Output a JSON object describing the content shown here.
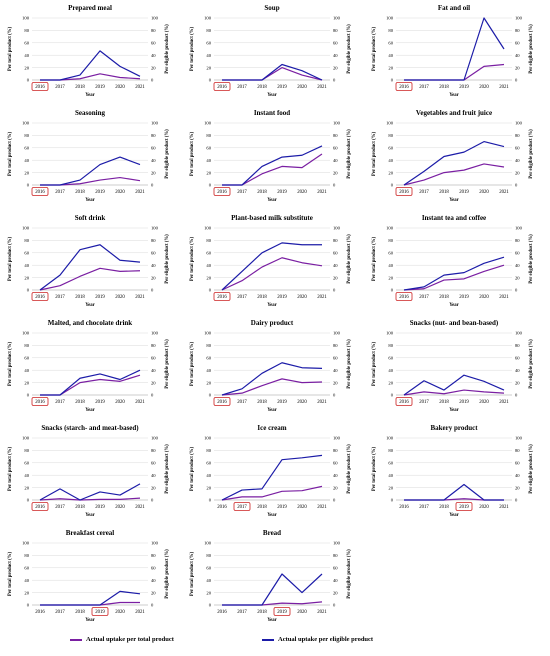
{
  "colors": {
    "total": "#7a1fa2",
    "eligible": "#1c1ca8",
    "highlight": "#cc2222",
    "grid": "#d9d9d9"
  },
  "legend": {
    "total_label": "Actual uptake per total product",
    "eligible_label": "Actual uptake per eligible product"
  },
  "chart_data": [
    {
      "type": "line",
      "title": "Prepared meal",
      "x": [
        "2016",
        "2017",
        "2018",
        "2019",
        "2020",
        "2021"
      ],
      "xlabel": "Year",
      "ylabel": "Per total product (%)",
      "y2label": "Per eligible product (%)",
      "ylim": [
        0,
        100
      ],
      "yticks": [
        0,
        20,
        40,
        60,
        80,
        100
      ],
      "highlight_year": "2016",
      "series": [
        {
          "name": "Actual uptake per total product",
          "values": [
            0,
            0,
            2,
            10,
            4,
            2
          ]
        },
        {
          "name": "Actual uptake per eligible product",
          "values": [
            0,
            0,
            8,
            47,
            22,
            6
          ]
        }
      ]
    },
    {
      "type": "line",
      "title": "Soup",
      "x": [
        "2016",
        "2017",
        "2018",
        "2019",
        "2020",
        "2021"
      ],
      "xlabel": "Year",
      "ylabel": "Per total product (%)",
      "y2label": "Per eligible product (%)",
      "ylim": [
        0,
        100
      ],
      "yticks": [
        0,
        20,
        40,
        60,
        80,
        100
      ],
      "highlight_year": "2016",
      "series": [
        {
          "name": "Actual uptake per total product",
          "values": [
            0,
            0,
            0,
            20,
            8,
            0
          ]
        },
        {
          "name": "Actual uptake per eligible product",
          "values": [
            0,
            0,
            0,
            25,
            15,
            0
          ]
        }
      ]
    },
    {
      "type": "line",
      "title": "Fat and oil",
      "x": [
        "2016",
        "2017",
        "2018",
        "2019",
        "2020",
        "2021"
      ],
      "xlabel": "Year",
      "ylabel": "Per total product (%)",
      "y2label": "Per eligible product (%)",
      "ylim": [
        0,
        100
      ],
      "yticks": [
        0,
        20,
        40,
        60,
        80,
        100
      ],
      "highlight_year": "2016",
      "series": [
        {
          "name": "Actual uptake per total product",
          "values": [
            0,
            0,
            0,
            0,
            22,
            25
          ]
        },
        {
          "name": "Actual uptake per eligible product",
          "values": [
            0,
            0,
            0,
            0,
            100,
            50
          ]
        }
      ]
    },
    {
      "type": "line",
      "title": "Seasoning",
      "x": [
        "2016",
        "2017",
        "2018",
        "2019",
        "2020",
        "2021"
      ],
      "xlabel": "Year",
      "ylabel": "Per total product (%)",
      "y2label": "Per eligible product (%)",
      "ylim": [
        0,
        100
      ],
      "yticks": [
        0,
        20,
        40,
        60,
        80,
        100
      ],
      "highlight_year": "2016",
      "series": [
        {
          "name": "Actual uptake per total product",
          "values": [
            0,
            0,
            2,
            8,
            12,
            7
          ]
        },
        {
          "name": "Actual uptake per eligible product",
          "values": [
            0,
            0,
            8,
            33,
            45,
            33
          ]
        }
      ]
    },
    {
      "type": "line",
      "title": "Instant food",
      "x": [
        "2016",
        "2017",
        "2018",
        "2019",
        "2020",
        "2021"
      ],
      "xlabel": "Year",
      "ylabel": "Per total product (%)",
      "y2label": "Per eligible product (%)",
      "ylim": [
        0,
        100
      ],
      "yticks": [
        0,
        20,
        40,
        60,
        80,
        100
      ],
      "highlight_year": "2016",
      "series": [
        {
          "name": "Actual uptake per total product",
          "values": [
            0,
            0,
            18,
            30,
            28,
            50
          ]
        },
        {
          "name": "Actual uptake per eligible product",
          "values": [
            0,
            0,
            30,
            45,
            48,
            63
          ]
        }
      ]
    },
    {
      "type": "line",
      "title": "Vegetables and fruit juice",
      "x": [
        "2016",
        "2017",
        "2018",
        "2019",
        "2020",
        "2021"
      ],
      "xlabel": "Year",
      "ylabel": "Per total product (%)",
      "y2label": "Per eligible product (%)",
      "ylim": [
        0,
        100
      ],
      "yticks": [
        0,
        20,
        40,
        60,
        80,
        100
      ],
      "highlight_year": "2016",
      "series": [
        {
          "name": "Actual uptake per total product",
          "values": [
            0,
            8,
            20,
            24,
            34,
            29
          ]
        },
        {
          "name": "Actual uptake per eligible product",
          "values": [
            0,
            22,
            46,
            53,
            70,
            62
          ]
        }
      ]
    },
    {
      "type": "line",
      "title": "Soft drink",
      "x": [
        "2016",
        "2017",
        "2018",
        "2019",
        "2020",
        "2021"
      ],
      "xlabel": "Year",
      "ylabel": "Per total product (%)",
      "y2label": "Per eligible product (%)",
      "ylim": [
        0,
        100
      ],
      "yticks": [
        0,
        20,
        40,
        60,
        80,
        100
      ],
      "highlight_year": "2016",
      "series": [
        {
          "name": "Actual uptake per total product",
          "values": [
            0,
            7,
            22,
            35,
            30,
            31
          ]
        },
        {
          "name": "Actual uptake per eligible product",
          "values": [
            0,
            24,
            65,
            73,
            48,
            45
          ]
        }
      ]
    },
    {
      "type": "line",
      "title": "Plant-based milk substitute",
      "x": [
        "2016",
        "2017",
        "2018",
        "2019",
        "2020",
        "2021"
      ],
      "xlabel": "Year",
      "ylabel": "Per total product (%)",
      "y2label": "Per eligible product (%)",
      "ylim": [
        0,
        100
      ],
      "yticks": [
        0,
        20,
        40,
        60,
        80,
        100
      ],
      "highlight_year": "2016",
      "series": [
        {
          "name": "Actual uptake per total product",
          "values": [
            0,
            15,
            37,
            52,
            44,
            39
          ]
        },
        {
          "name": "Actual uptake per eligible product",
          "values": [
            0,
            30,
            60,
            76,
            73,
            73
          ]
        }
      ]
    },
    {
      "type": "line",
      "title": "Instant tea and coffee",
      "x": [
        "2016",
        "2017",
        "2018",
        "2019",
        "2020",
        "2021"
      ],
      "xlabel": "Year",
      "ylabel": "Per total product (%)",
      "y2label": "Per eligible product (%)",
      "ylim": [
        0,
        100
      ],
      "yticks": [
        0,
        20,
        40,
        60,
        80,
        100
      ],
      "highlight_year": "2016",
      "series": [
        {
          "name": "Actual uptake per total product",
          "values": [
            0,
            2,
            16,
            18,
            30,
            40
          ]
        },
        {
          "name": "Actual uptake per eligible product",
          "values": [
            0,
            5,
            24,
            28,
            43,
            53
          ]
        }
      ]
    },
    {
      "type": "line",
      "title": "Malted, and chocolate drink",
      "x": [
        "2016",
        "2017",
        "2018",
        "2019",
        "2020",
        "2021"
      ],
      "xlabel": "Year",
      "ylabel": "Per total product (%)",
      "y2label": "Per eligible product (%)",
      "ylim": [
        0,
        100
      ],
      "yticks": [
        0,
        20,
        40,
        60,
        80,
        100
      ],
      "highlight_year": "2016",
      "series": [
        {
          "name": "Actual uptake per total product",
          "values": [
            0,
            0,
            20,
            25,
            22,
            32
          ]
        },
        {
          "name": "Actual uptake per eligible product",
          "values": [
            0,
            0,
            27,
            34,
            25,
            40
          ]
        }
      ]
    },
    {
      "type": "line",
      "title": "Dairy product",
      "x": [
        "2016",
        "2017",
        "2018",
        "2019",
        "2020",
        "2021"
      ],
      "xlabel": "Year",
      "ylabel": "Per total product (%)",
      "y2label": "Per eligible product (%)",
      "ylim": [
        0,
        100
      ],
      "yticks": [
        0,
        20,
        40,
        60,
        80,
        100
      ],
      "highlight_year": "2016",
      "series": [
        {
          "name": "Actual uptake per total product",
          "values": [
            0,
            3,
            15,
            26,
            20,
            21
          ]
        },
        {
          "name": "Actual uptake per eligible product",
          "values": [
            0,
            10,
            35,
            52,
            44,
            43
          ]
        }
      ]
    },
    {
      "type": "line",
      "title": "Snacks (nut- and bean-based)",
      "x": [
        "2016",
        "2017",
        "2018",
        "2019",
        "2020",
        "2021"
      ],
      "xlabel": "Year",
      "ylabel": "Per total product (%)",
      "y2label": "Per eligible product (%)",
      "ylim": [
        0,
        100
      ],
      "yticks": [
        0,
        20,
        40,
        60,
        80,
        100
      ],
      "highlight_year": "2016",
      "series": [
        {
          "name": "Actual uptake per total product",
          "values": [
            0,
            5,
            2,
            8,
            5,
            3
          ]
        },
        {
          "name": "Actual uptake per eligible product",
          "values": [
            0,
            23,
            8,
            32,
            22,
            8
          ]
        }
      ]
    },
    {
      "type": "line",
      "title": "Snacks (starch- and meat-based)",
      "x": [
        "2016",
        "2017",
        "2018",
        "2019",
        "2020",
        "2021"
      ],
      "xlabel": "Year",
      "ylabel": "Per total product (%)",
      "y2label": "Per eligible product (%)",
      "ylim": [
        0,
        100
      ],
      "yticks": [
        0,
        20,
        40,
        60,
        80,
        100
      ],
      "highlight_year": "2016",
      "series": [
        {
          "name": "Actual uptake per total product",
          "values": [
            0,
            2,
            0,
            1,
            1,
            3
          ]
        },
        {
          "name": "Actual uptake per eligible product",
          "values": [
            0,
            18,
            0,
            13,
            8,
            26
          ]
        }
      ]
    },
    {
      "type": "line",
      "title": "Ice cream",
      "x": [
        "2016",
        "2017",
        "2018",
        "2019",
        "2020",
        "2021"
      ],
      "xlabel": "Year",
      "ylabel": "Per total product (%)",
      "y2label": "Per eligible product (%)",
      "ylim": [
        0,
        100
      ],
      "yticks": [
        0,
        20,
        40,
        60,
        80,
        100
      ],
      "highlight_year": "2017",
      "series": [
        {
          "name": "Actual uptake per total product",
          "values": [
            0,
            5,
            5,
            14,
            15,
            22
          ]
        },
        {
          "name": "Actual uptake per eligible product",
          "values": [
            0,
            16,
            18,
            65,
            68,
            72
          ]
        }
      ]
    },
    {
      "type": "line",
      "title": "Bakery product",
      "x": [
        "2016",
        "2017",
        "2018",
        "2019",
        "2020",
        "2021"
      ],
      "xlabel": "Year",
      "ylabel": "Per total product (%)",
      "y2label": "Per eligible product (%)",
      "ylim": [
        0,
        100
      ],
      "yticks": [
        0,
        20,
        40,
        60,
        80,
        100
      ],
      "highlight_year": "2019",
      "series": [
        {
          "name": "Actual uptake per total product",
          "values": [
            0,
            0,
            0,
            2,
            0,
            0
          ]
        },
        {
          "name": "Actual uptake per eligible product",
          "values": [
            0,
            0,
            0,
            25,
            0,
            0
          ]
        }
      ]
    },
    {
      "type": "line",
      "title": "Breakfast cereal",
      "x": [
        "2016",
        "2017",
        "2018",
        "2019",
        "2020",
        "2021"
      ],
      "xlabel": "Year",
      "ylabel": "Per total product (%)",
      "y2label": "Per eligible product (%)",
      "ylim": [
        0,
        100
      ],
      "yticks": [
        0,
        20,
        40,
        60,
        80,
        100
      ],
      "highlight_year": "2019",
      "series": [
        {
          "name": "Actual uptake per total product",
          "values": [
            0,
            0,
            0,
            0,
            4,
            4
          ]
        },
        {
          "name": "Actual uptake per eligible product",
          "values": [
            0,
            0,
            0,
            0,
            22,
            18
          ]
        }
      ]
    },
    {
      "type": "line",
      "title": "Bread",
      "x": [
        "2016",
        "2017",
        "2018",
        "2019",
        "2020",
        "2021"
      ],
      "xlabel": "Year",
      "ylabel": "Per total product (%)",
      "y2label": "Per eligible product (%)",
      "ylim": [
        0,
        100
      ],
      "yticks": [
        0,
        20,
        40,
        60,
        80,
        100
      ],
      "highlight_year": "2019",
      "series": [
        {
          "name": "Actual uptake per total product",
          "values": [
            0,
            0,
            0,
            3,
            2,
            5
          ]
        },
        {
          "name": "Actual uptake per eligible product",
          "values": [
            0,
            0,
            0,
            50,
            20,
            50
          ]
        }
      ]
    }
  ]
}
